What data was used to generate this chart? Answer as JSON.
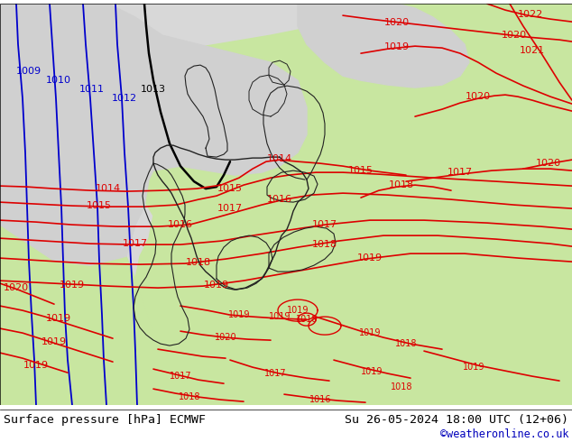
{
  "title_left": "Surface pressure [hPa] ECMWF",
  "title_right": "Su 26-05-2024 18:00 UTC (12+06)",
  "credit": "©weatheronline.co.uk",
  "credit_color": "#0000bb",
  "land_color": "#c8e6a0",
  "sea_gray_color": "#d0d0d0",
  "border_color": "#333333",
  "isobar_red": "#dd0000",
  "isobar_blue": "#0000cc",
  "isobar_black": "#000000",
  "label_fontsize": 8,
  "footer_fontsize": 9.5,
  "credit_fontsize": 8.5,
  "figsize": [
    6.34,
    4.9
  ],
  "dpi": 100
}
